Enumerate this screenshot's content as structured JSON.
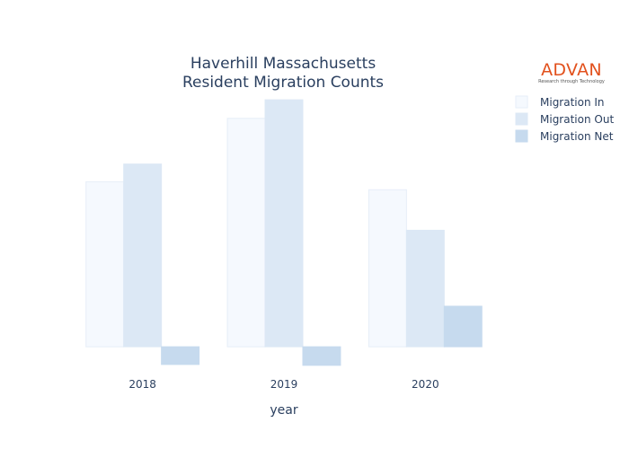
{
  "logo": {
    "name": "ADVAN",
    "tagline": "Research through Technology",
    "color": "#e2511d"
  },
  "chart_data": {
    "type": "bar",
    "title_lines": [
      "Haverhill Massachusetts",
      "Resident Migration Counts"
    ],
    "xlabel": "year",
    "ylabel": "",
    "categories": [
      "2018",
      "2019",
      "2020"
    ],
    "series": [
      {
        "name": "Migration In",
        "values": [
          5780,
          8000,
          5500
        ],
        "color": "#f5f9fe",
        "stroke": "#e6eef8"
      },
      {
        "name": "Migration Out",
        "values": [
          6400,
          8650,
          4080
        ],
        "color": "#dce8f5",
        "stroke": "#dce8f5"
      },
      {
        "name": "Migration Net",
        "values": [
          -620,
          -650,
          1420
        ],
        "color": "#c6daee",
        "stroke": "#c6daee"
      }
    ],
    "ylim": [
      -750,
      9000
    ],
    "grid": false,
    "y_ticks_visible": false,
    "legend_position": "top-right"
  }
}
